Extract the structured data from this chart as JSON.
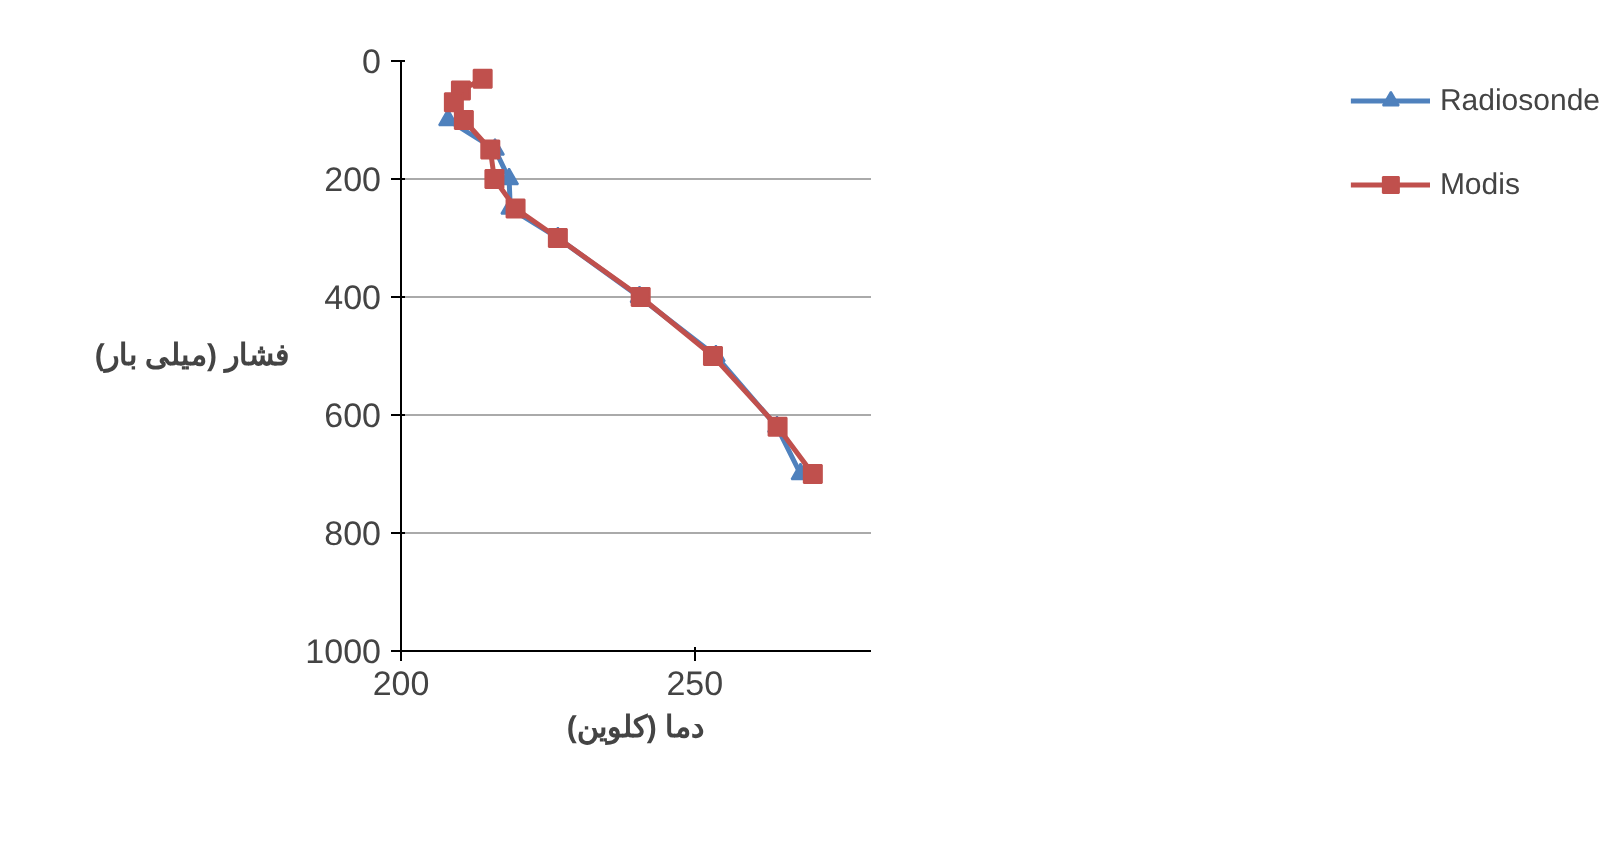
{
  "chart_data": {
    "type": "line",
    "xlabel": "دما (کلوین)",
    "ylabel": "فشار (میلی بار)",
    "xlim": [
      200,
      280
    ],
    "xticks": [
      200,
      250
    ],
    "ylim": [
      1000,
      0
    ],
    "yticks": [
      0,
      200,
      400,
      600,
      800,
      1000
    ],
    "grid": "y",
    "legend": "right",
    "line_style": "solid",
    "series": [
      {
        "name": "Radiosonde",
        "color": "#4f81bd",
        "marker": "triangle",
        "x": [
          208,
          216,
          218.4,
          218.6,
          226.7,
          240.6,
          253.6,
          264,
          268
        ],
        "values": [
          100,
          150,
          200,
          250,
          300,
          400,
          500,
          620,
          700
        ]
      },
      {
        "name": "Modis",
        "color": "#c0504d",
        "marker": "square",
        "x": [
          213.9,
          210.2,
          209,
          210.7,
          215.2,
          215.9,
          219.5,
          226.7,
          240.8,
          253.1,
          264.1,
          270.1
        ],
        "values": [
          30,
          50,
          70,
          100,
          150,
          200,
          250,
          300,
          400,
          500,
          620,
          700
        ]
      }
    ]
  }
}
